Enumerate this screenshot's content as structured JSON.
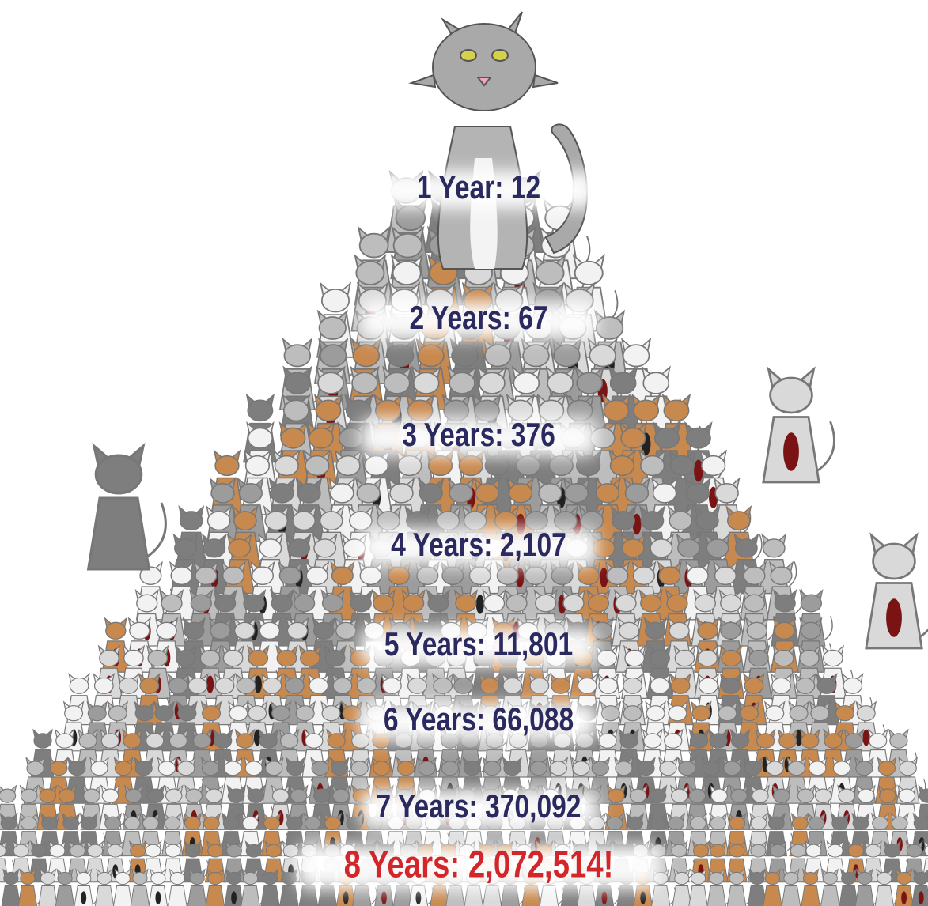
{
  "labels": [
    "1 Year: 12",
    "2 Years: 67",
    "3 Years: 376",
    "4 Years: 2,107",
    "5 Years: 11,801",
    "6 Years: 66,088",
    "7 Years: 370,092",
    "8 Years: 2,072,514!"
  ]
}
